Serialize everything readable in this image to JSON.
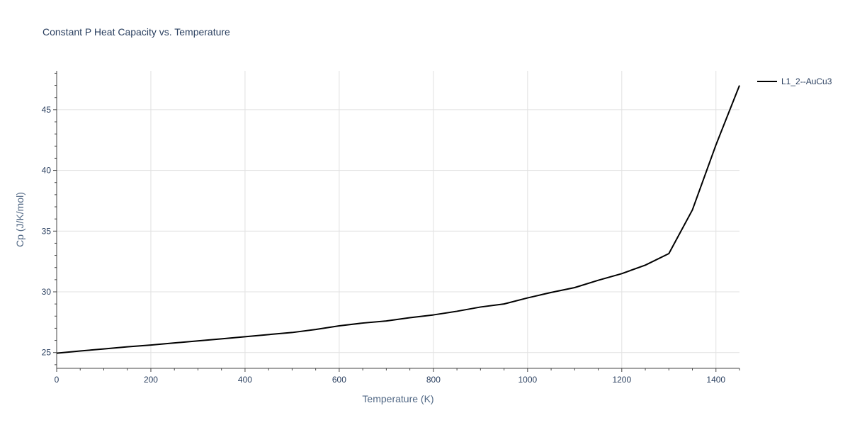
{
  "chart_data": {
    "type": "line",
    "title": "Constant P Heat Capacity vs. Temperature",
    "xlabel": "Temperature (K)",
    "ylabel": "Cp (J/K/mol)",
    "xlim": [
      0,
      1450
    ],
    "ylim": [
      23.7,
      48.2
    ],
    "x_ticks": [
      0,
      200,
      400,
      600,
      800,
      1000,
      1200,
      1400
    ],
    "y_ticks": [
      25,
      30,
      35,
      40,
      45
    ],
    "x_minor_step": 50,
    "y_minor_step": 1,
    "grid": true,
    "legend_position": "top-right",
    "series": [
      {
        "name": "L1_2--AuCu3",
        "color": "#000000",
        "x": [
          0,
          50,
          100,
          150,
          200,
          250,
          300,
          350,
          400,
          450,
          500,
          550,
          600,
          650,
          700,
          750,
          800,
          850,
          900,
          950,
          1000,
          1050,
          1100,
          1150,
          1200,
          1250,
          1300,
          1350,
          1400,
          1450
        ],
        "y": [
          24.95,
          25.13,
          25.3,
          25.47,
          25.62,
          25.79,
          25.96,
          26.13,
          26.3,
          26.48,
          26.65,
          26.9,
          27.2,
          27.43,
          27.6,
          27.87,
          28.1,
          28.4,
          28.75,
          29.0,
          29.5,
          29.95,
          30.35,
          30.95,
          31.5,
          32.2,
          33.15,
          36.75,
          42.1,
          47.0
        ]
      }
    ]
  }
}
